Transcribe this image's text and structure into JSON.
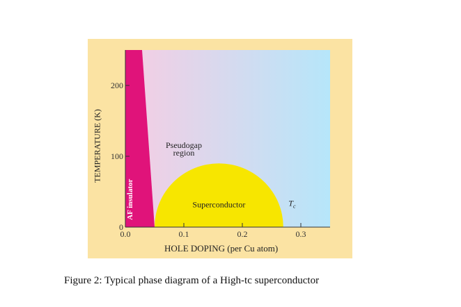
{
  "chart_data": {
    "type": "area",
    "title": "",
    "xlabel": "HOLE DOPING (per Cu atom)",
    "ylabel": "TEMPERATURE (K)",
    "xlim": [
      0.0,
      0.35
    ],
    "ylim": [
      0,
      250
    ],
    "x_ticks": [
      "0.0",
      "0.1",
      "0.2",
      "0.3"
    ],
    "y_ticks": [
      "0",
      "100",
      "200"
    ],
    "regions": [
      {
        "name": "AF insulator",
        "label": "AF insulator",
        "color": "#e0137a",
        "boundary": [
          [
            0.0,
            250
          ],
          [
            0.05,
            0
          ]
        ]
      },
      {
        "name": "Pseudogap region",
        "label": "Pseudogap\nregion",
        "color": "#f3d3e8"
      },
      {
        "name": "Superconductor",
        "label": "Superconductor",
        "color": "#f7e600",
        "dome": {
          "x_start": 0.05,
          "x_peak": 0.16,
          "x_end": 0.27,
          "t_max": 90
        }
      },
      {
        "name": "Tc",
        "label": "T",
        "sub": "c"
      }
    ],
    "grid": false,
    "legend": "none"
  },
  "caption": "Figure 2: Typical phase diagram of a High-tc superconductor",
  "colors": {
    "panel": "#fbe3a3",
    "gradient_left": "#f6cde3",
    "gradient_right": "#b6e6fa",
    "af": "#e0137a",
    "dome": "#f7e600"
  }
}
